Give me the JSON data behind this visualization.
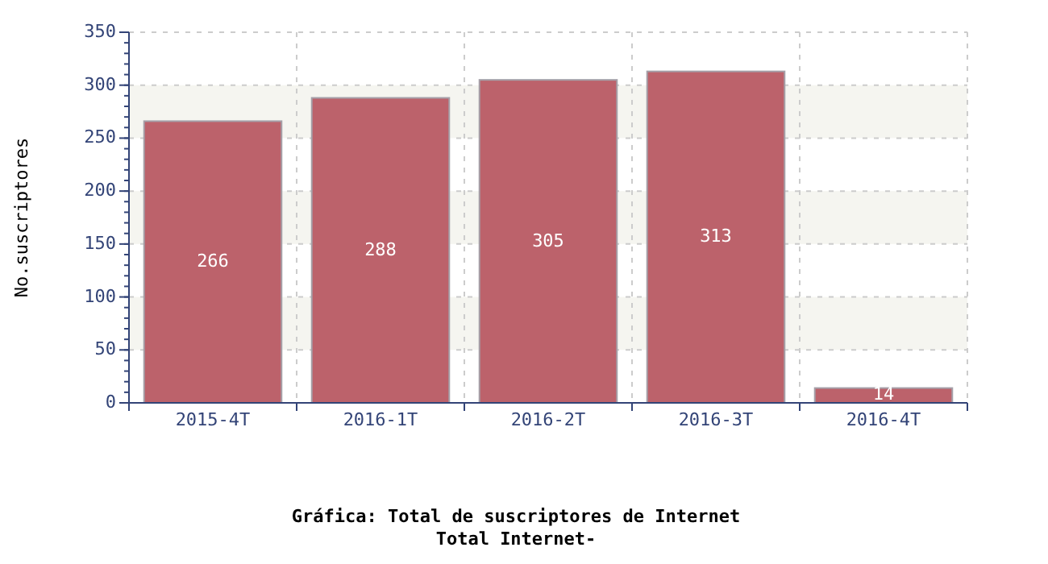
{
  "chart_data": {
    "type": "bar",
    "title": "Gráfica: Total de suscriptores de Internet",
    "subtitle": "Total Internet-",
    "ylabel": "No.suscriptores",
    "categories": [
      "2015-4T",
      "2016-1T",
      "2016-2T",
      "2016-3T",
      "2016-4T"
    ],
    "values": [
      266,
      288,
      305,
      313,
      14
    ],
    "color": "#bc626b",
    "ylim": [
      0,
      350
    ],
    "yticks": [
      0,
      50,
      100,
      150,
      200,
      250,
      300,
      350
    ],
    "grid": true,
    "data_labels": true
  }
}
